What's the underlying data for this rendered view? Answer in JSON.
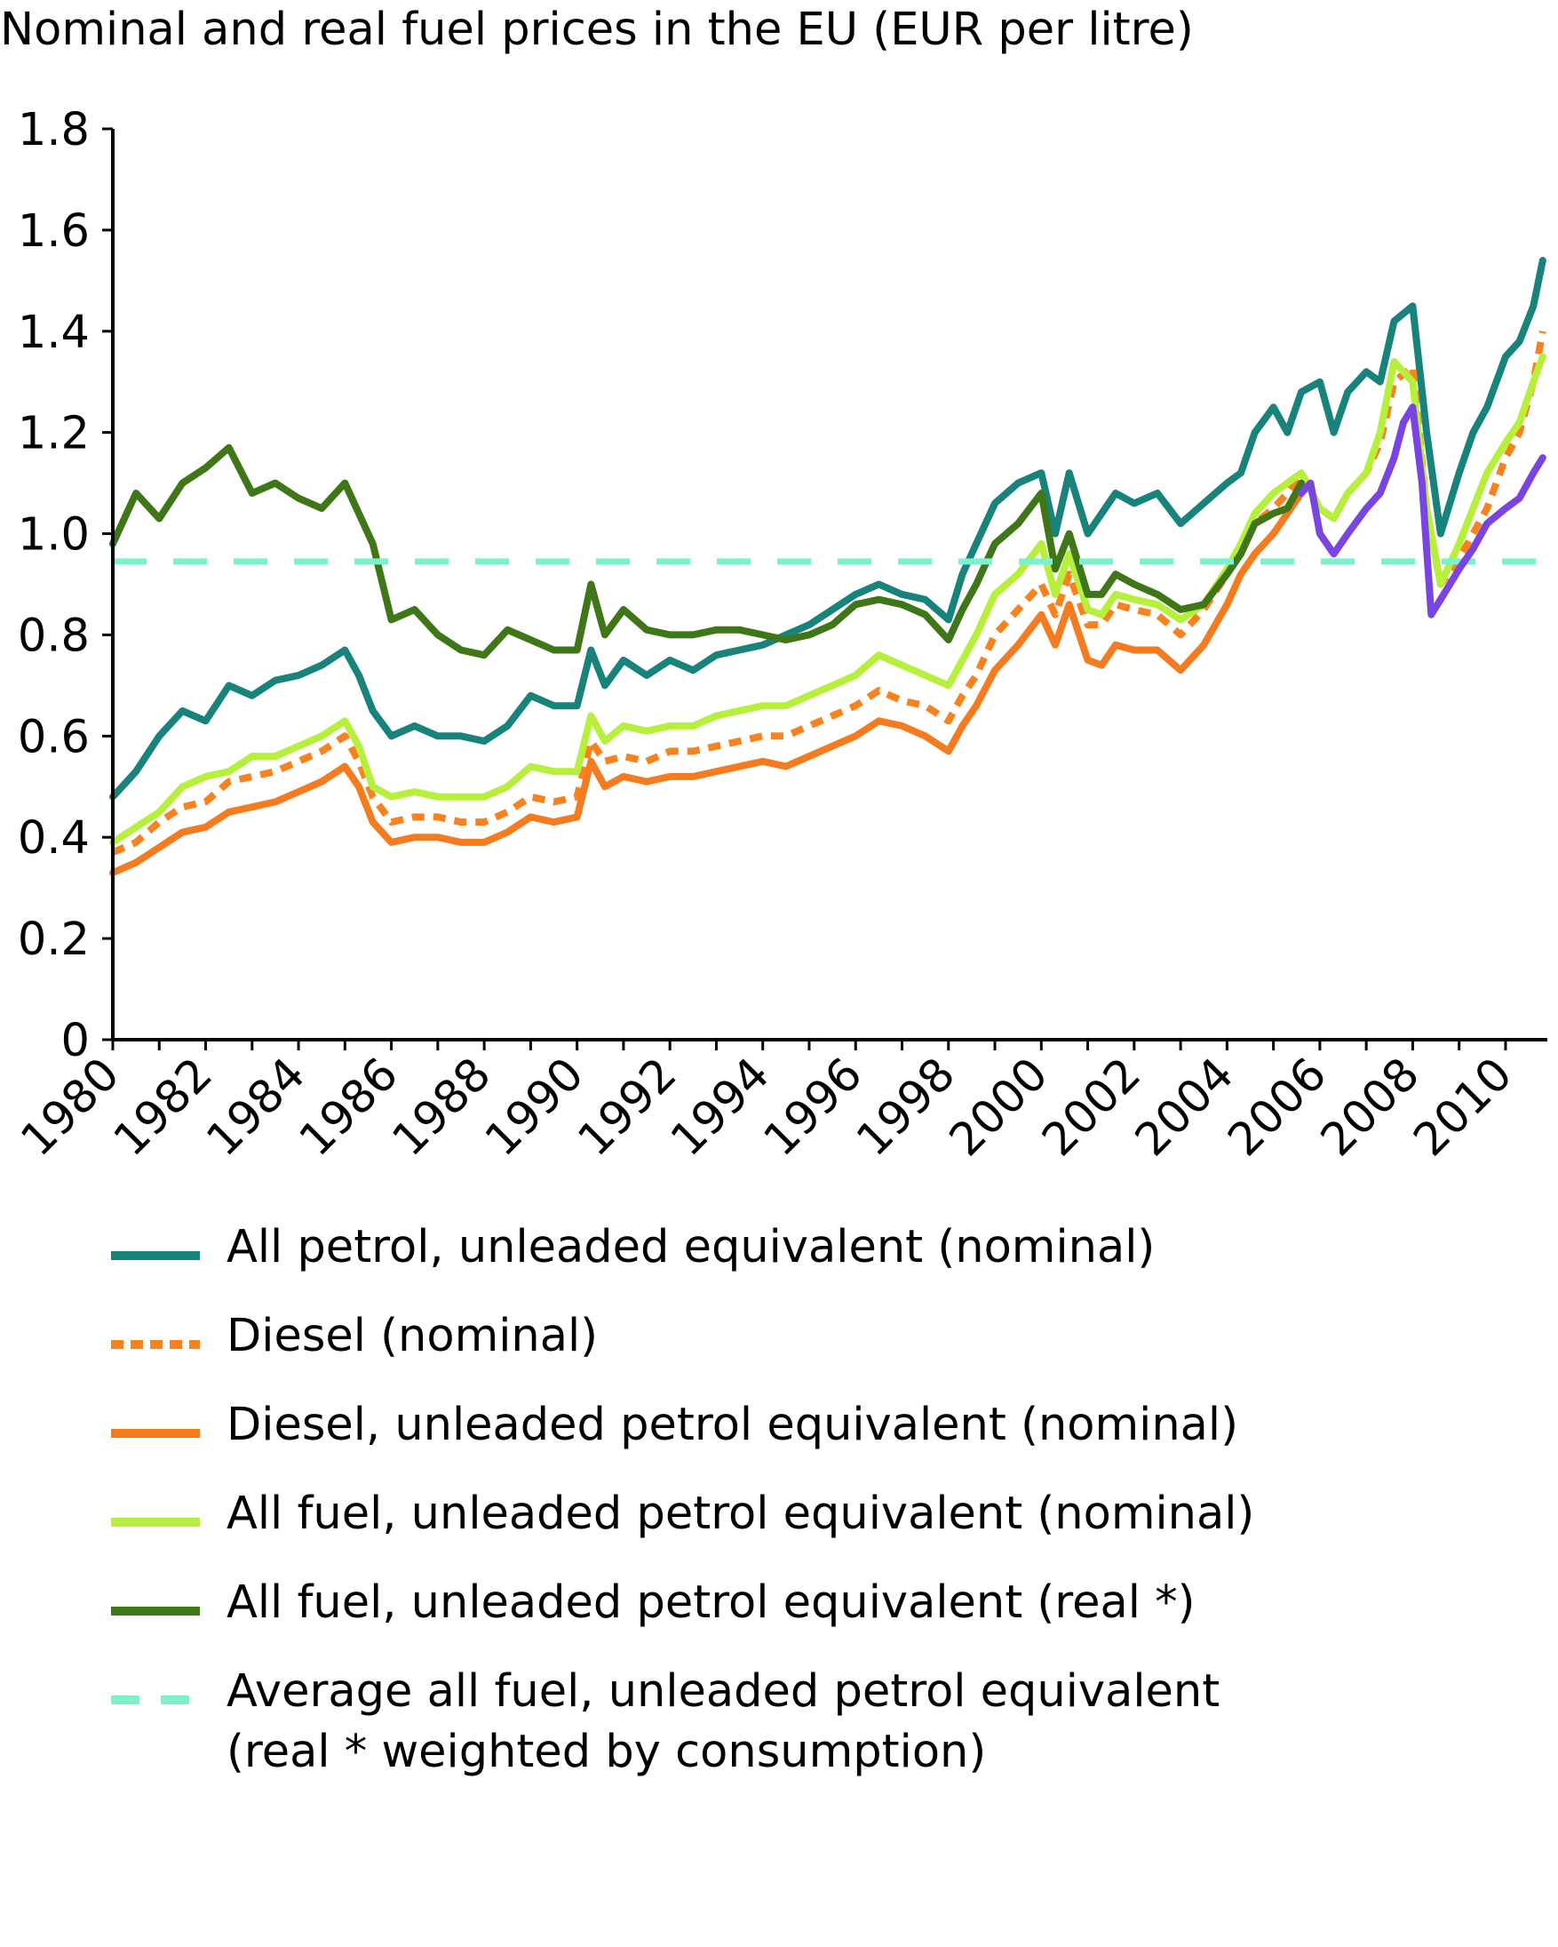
{
  "chart_data": {
    "type": "line",
    "title": "Nominal and real fuel prices in the EU (EUR per litre)",
    "xlabel": "",
    "ylabel": "",
    "xlim": [
      1980,
      2010.9
    ],
    "ylim": [
      0,
      1.8
    ],
    "y_ticks": [
      "0",
      "0.2",
      "0.4",
      "0.6",
      "0.8",
      "1.0",
      "1.2",
      "1.4",
      "1.6",
      "1.8"
    ],
    "x_ticks": [
      "1980",
      "1982",
      "1984",
      "1986",
      "1988",
      "1990",
      "1992",
      "1994",
      "1996",
      "1998",
      "2000",
      "2002",
      "2004",
      "2006",
      "2008",
      "2010"
    ],
    "grid": false,
    "legend_position": "bottom",
    "series": [
      {
        "name": "All petrol, unleaded equivalent (nominal)",
        "color": "#17837a",
        "dash": "solid",
        "x": [
          1980,
          1980.5,
          1981,
          1981.5,
          1982,
          1982.5,
          1983,
          1983.5,
          1984,
          1984.5,
          1985,
          1985.3,
          1985.6,
          1986,
          1986.5,
          1987,
          1987.5,
          1988,
          1988.5,
          1989,
          1989.5,
          1990,
          1990.3,
          1990.6,
          1991,
          1991.5,
          1992,
          1992.5,
          1993,
          1993.5,
          1994,
          1994.5,
          1995,
          1995.5,
          1996,
          1996.5,
          1997,
          1997.5,
          1998,
          1998.3,
          1998.6,
          1999,
          1999.5,
          2000,
          2000.3,
          2000.6,
          2001,
          2001.3,
          2001.6,
          2002,
          2002.5,
          2003,
          2003.5,
          2004,
          2004.3,
          2004.6,
          2005,
          2005.3,
          2005.6,
          2006,
          2006.3,
          2006.6,
          2007,
          2007.3,
          2007.6,
          2008,
          2008.3,
          2008.6,
          2009,
          2009.3,
          2009.6,
          2010,
          2010.3,
          2010.6,
          2010.8
        ],
        "y": [
          0.48,
          0.53,
          0.6,
          0.65,
          0.63,
          0.7,
          0.68,
          0.71,
          0.72,
          0.74,
          0.77,
          0.72,
          0.65,
          0.6,
          0.62,
          0.6,
          0.6,
          0.59,
          0.62,
          0.68,
          0.66,
          0.66,
          0.77,
          0.7,
          0.75,
          0.72,
          0.75,
          0.73,
          0.76,
          0.77,
          0.78,
          0.8,
          0.82,
          0.85,
          0.88,
          0.9,
          0.88,
          0.87,
          0.83,
          0.92,
          0.98,
          1.06,
          1.1,
          1.12,
          1.0,
          1.12,
          1.0,
          1.04,
          1.08,
          1.06,
          1.08,
          1.02,
          1.06,
          1.1,
          1.12,
          1.2,
          1.25,
          1.2,
          1.28,
          1.3,
          1.2,
          1.28,
          1.32,
          1.3,
          1.42,
          1.45,
          1.2,
          1.0,
          1.12,
          1.2,
          1.25,
          1.35,
          1.38,
          1.45,
          1.54
        ]
      },
      {
        "name": "Diesel (nominal)",
        "color": "#f7821e",
        "dash": "dashed",
        "x": [
          1980,
          1980.5,
          1981,
          1981.5,
          1982,
          1982.5,
          1983,
          1983.5,
          1984,
          1984.5,
          1985,
          1985.3,
          1985.6,
          1986,
          1986.5,
          1987,
          1987.5,
          1988,
          1988.5,
          1989,
          1989.5,
          1990,
          1990.3,
          1990.6,
          1991,
          1991.5,
          1992,
          1992.5,
          1993,
          1993.5,
          1994,
          1994.5,
          1995,
          1995.5,
          1996,
          1996.5,
          1997,
          1997.5,
          1998,
          1998.3,
          1998.6,
          1999,
          1999.5,
          2000,
          2000.3,
          2000.6,
          2001,
          2001.3,
          2001.6,
          2002,
          2002.5,
          2003,
          2003.5,
          2004,
          2004.3,
          2004.6,
          2005,
          2005.3,
          2005.6,
          2006,
          2006.3,
          2006.6,
          2007,
          2007.3,
          2007.6,
          2008,
          2008.3,
          2008.6,
          2009,
          2009.3,
          2009.6,
          2010,
          2010.3,
          2010.6,
          2010.8
        ],
        "y": [
          0.37,
          0.39,
          0.43,
          0.46,
          0.47,
          0.51,
          0.52,
          0.53,
          0.55,
          0.57,
          0.6,
          0.55,
          0.48,
          0.43,
          0.44,
          0.44,
          0.43,
          0.43,
          0.45,
          0.48,
          0.47,
          0.48,
          0.59,
          0.55,
          0.56,
          0.55,
          0.57,
          0.57,
          0.58,
          0.59,
          0.6,
          0.6,
          0.62,
          0.64,
          0.66,
          0.69,
          0.67,
          0.66,
          0.63,
          0.68,
          0.72,
          0.8,
          0.85,
          0.9,
          0.84,
          0.92,
          0.82,
          0.82,
          0.86,
          0.85,
          0.84,
          0.8,
          0.85,
          0.92,
          0.98,
          1.02,
          1.05,
          1.08,
          1.12,
          1.05,
          1.03,
          1.08,
          1.12,
          1.18,
          1.3,
          1.33,
          1.05,
          0.9,
          0.95,
          1.0,
          1.05,
          1.15,
          1.2,
          1.3,
          1.4
        ]
      },
      {
        "name": "Diesel, unleaded petrol equivalent (nominal)",
        "color": "#f47b20",
        "dash": "solid",
        "x": [
          1980,
          1980.5,
          1981,
          1981.5,
          1982,
          1982.5,
          1983,
          1983.5,
          1984,
          1984.5,
          1985,
          1985.3,
          1985.6,
          1986,
          1986.5,
          1987,
          1987.5,
          1988,
          1988.5,
          1989,
          1989.5,
          1990,
          1990.3,
          1990.6,
          1991,
          1991.5,
          1992,
          1992.5,
          1993,
          1993.5,
          1994,
          1994.5,
          1995,
          1995.5,
          1996,
          1996.5,
          1997,
          1997.5,
          1998,
          1998.3,
          1998.6,
          1999,
          1999.5,
          2000,
          2000.3,
          2000.6,
          2001,
          2001.3,
          2001.6,
          2002,
          2002.5,
          2003,
          2003.5,
          2004,
          2004.3,
          2004.6,
          2005,
          2005.3,
          2005.6
        ],
        "y": [
          0.33,
          0.35,
          0.38,
          0.41,
          0.42,
          0.45,
          0.46,
          0.47,
          0.49,
          0.51,
          0.54,
          0.5,
          0.43,
          0.39,
          0.4,
          0.4,
          0.39,
          0.39,
          0.41,
          0.44,
          0.43,
          0.44,
          0.55,
          0.5,
          0.52,
          0.51,
          0.52,
          0.52,
          0.53,
          0.54,
          0.55,
          0.54,
          0.56,
          0.58,
          0.6,
          0.63,
          0.62,
          0.6,
          0.57,
          0.62,
          0.66,
          0.73,
          0.78,
          0.84,
          0.78,
          0.86,
          0.75,
          0.74,
          0.78,
          0.77,
          0.77,
          0.73,
          0.78,
          0.86,
          0.92,
          0.96,
          1.0,
          1.04,
          1.08
        ]
      },
      {
        "name": "All fuel, unleaded petrol equivalent (nominal)",
        "color": "#b6ef3c",
        "dash": "solid",
        "x": [
          1980,
          1980.5,
          1981,
          1981.5,
          1982,
          1982.5,
          1983,
          1983.5,
          1984,
          1984.5,
          1985,
          1985.3,
          1985.6,
          1986,
          1986.5,
          1987,
          1987.5,
          1988,
          1988.5,
          1989,
          1989.5,
          1990,
          1990.3,
          1990.6,
          1991,
          1991.5,
          1992,
          1992.5,
          1993,
          1993.5,
          1994,
          1994.5,
          1995,
          1995.5,
          1996,
          1996.5,
          1997,
          1997.5,
          1998,
          1998.3,
          1998.6,
          1999,
          1999.5,
          2000,
          2000.3,
          2000.6,
          2001,
          2001.3,
          2001.6,
          2002,
          2002.5,
          2003,
          2003.5,
          2004,
          2004.3,
          2004.6,
          2005,
          2005.3,
          2005.6,
          2006,
          2006.3,
          2006.6,
          2007,
          2007.3,
          2007.6,
          2008,
          2008.3,
          2008.6,
          2009,
          2009.3,
          2009.6,
          2010,
          2010.3,
          2010.6,
          2010.8
        ],
        "y": [
          0.39,
          0.42,
          0.45,
          0.5,
          0.52,
          0.53,
          0.56,
          0.56,
          0.58,
          0.6,
          0.63,
          0.58,
          0.5,
          0.48,
          0.49,
          0.48,
          0.48,
          0.48,
          0.5,
          0.54,
          0.53,
          0.53,
          0.64,
          0.59,
          0.62,
          0.61,
          0.62,
          0.62,
          0.64,
          0.65,
          0.66,
          0.66,
          0.68,
          0.7,
          0.72,
          0.76,
          0.74,
          0.72,
          0.7,
          0.75,
          0.8,
          0.88,
          0.92,
          0.98,
          0.88,
          0.96,
          0.85,
          0.84,
          0.88,
          0.87,
          0.86,
          0.83,
          0.86,
          0.93,
          0.98,
          1.04,
          1.08,
          1.1,
          1.12,
          1.05,
          1.03,
          1.08,
          1.12,
          1.2,
          1.34,
          1.3,
          1.05,
          0.9,
          0.98,
          1.05,
          1.12,
          1.18,
          1.22,
          1.3,
          1.35
        ]
      },
      {
        "name": "All fuel, unleaded petrol equivalent (real *)",
        "color": "#3f7617",
        "dash": "solid",
        "x": [
          1980,
          1980.5,
          1981,
          1981.5,
          1982,
          1982.5,
          1983,
          1983.5,
          1984,
          1984.5,
          1985,
          1985.3,
          1985.6,
          1986,
          1986.5,
          1987,
          1987.5,
          1988,
          1988.5,
          1989,
          1989.5,
          1990,
          1990.3,
          1990.6,
          1991,
          1991.5,
          1992,
          1992.5,
          1993,
          1993.5,
          1994,
          1994.5,
          1995,
          1995.5,
          1996,
          1996.5,
          1997,
          1997.5,
          1998,
          1998.3,
          1998.6,
          1999,
          1999.5,
          2000,
          2000.3,
          2000.6,
          2001,
          2001.3,
          2001.6,
          2002,
          2002.5,
          2003,
          2003.5,
          2004,
          2004.3,
          2004.6,
          2005,
          2005.3,
          2005.6
        ],
        "y": [
          0.98,
          1.08,
          1.03,
          1.1,
          1.13,
          1.17,
          1.08,
          1.1,
          1.07,
          1.05,
          1.1,
          1.04,
          0.98,
          0.83,
          0.85,
          0.8,
          0.77,
          0.76,
          0.81,
          0.79,
          0.77,
          0.77,
          0.9,
          0.8,
          0.85,
          0.81,
          0.8,
          0.8,
          0.81,
          0.81,
          0.8,
          0.79,
          0.8,
          0.82,
          0.86,
          0.87,
          0.86,
          0.84,
          0.79,
          0.85,
          0.9,
          0.98,
          1.02,
          1.08,
          0.93,
          1.0,
          0.88,
          0.88,
          0.92,
          0.9,
          0.88,
          0.85,
          0.86,
          0.92,
          0.96,
          1.02,
          1.04,
          1.05,
          1.1
        ]
      },
      {
        "name": "Average all fuel, unleaded petrol equivalent\n(real * weighted by consumption)",
        "color": "#7ff0cc",
        "dash": "long-dash",
        "x": [
          1980,
          2010.9
        ],
        "y": [
          0.945,
          0.945
        ]
      },
      {
        "name": "",
        "color": "#7a44e0",
        "dash": "solid",
        "x": [
          2005.6,
          2005.8,
          2006,
          2006.3,
          2006.6,
          2007,
          2007.3,
          2007.6,
          2007.8,
          2008,
          2008.2,
          2008.4,
          2008.6,
          2009,
          2009.3,
          2009.6,
          2010,
          2010.3,
          2010.6,
          2010.8
        ],
        "y": [
          1.08,
          1.1,
          1.0,
          0.96,
          1.0,
          1.05,
          1.08,
          1.15,
          1.22,
          1.25,
          1.1,
          0.84,
          0.87,
          0.93,
          0.97,
          1.02,
          1.05,
          1.07,
          1.12,
          1.15
        ]
      }
    ]
  },
  "legend_items": [
    {
      "label": "All petrol, unleaded equivalent (nominal)",
      "color": "#17837a",
      "style": "solid"
    },
    {
      "label": "Diesel (nominal)",
      "color": "#f7821e",
      "style": "dotted"
    },
    {
      "label": "Diesel, unleaded petrol equivalent (nominal)",
      "color": "#f47b20",
      "style": "solid"
    },
    {
      "label": "All fuel, unleaded petrol equivalent (nominal)",
      "color": "#b6ef3c",
      "style": "solid"
    },
    {
      "label": "All fuel, unleaded petrol equivalent (real *)",
      "color": "#3f7617",
      "style": "solid"
    },
    {
      "label": "Average all fuel, unleaded petrol equivalent\n(real * weighted by consumption)",
      "color": "#7ff0cc",
      "style": "dashed"
    }
  ]
}
